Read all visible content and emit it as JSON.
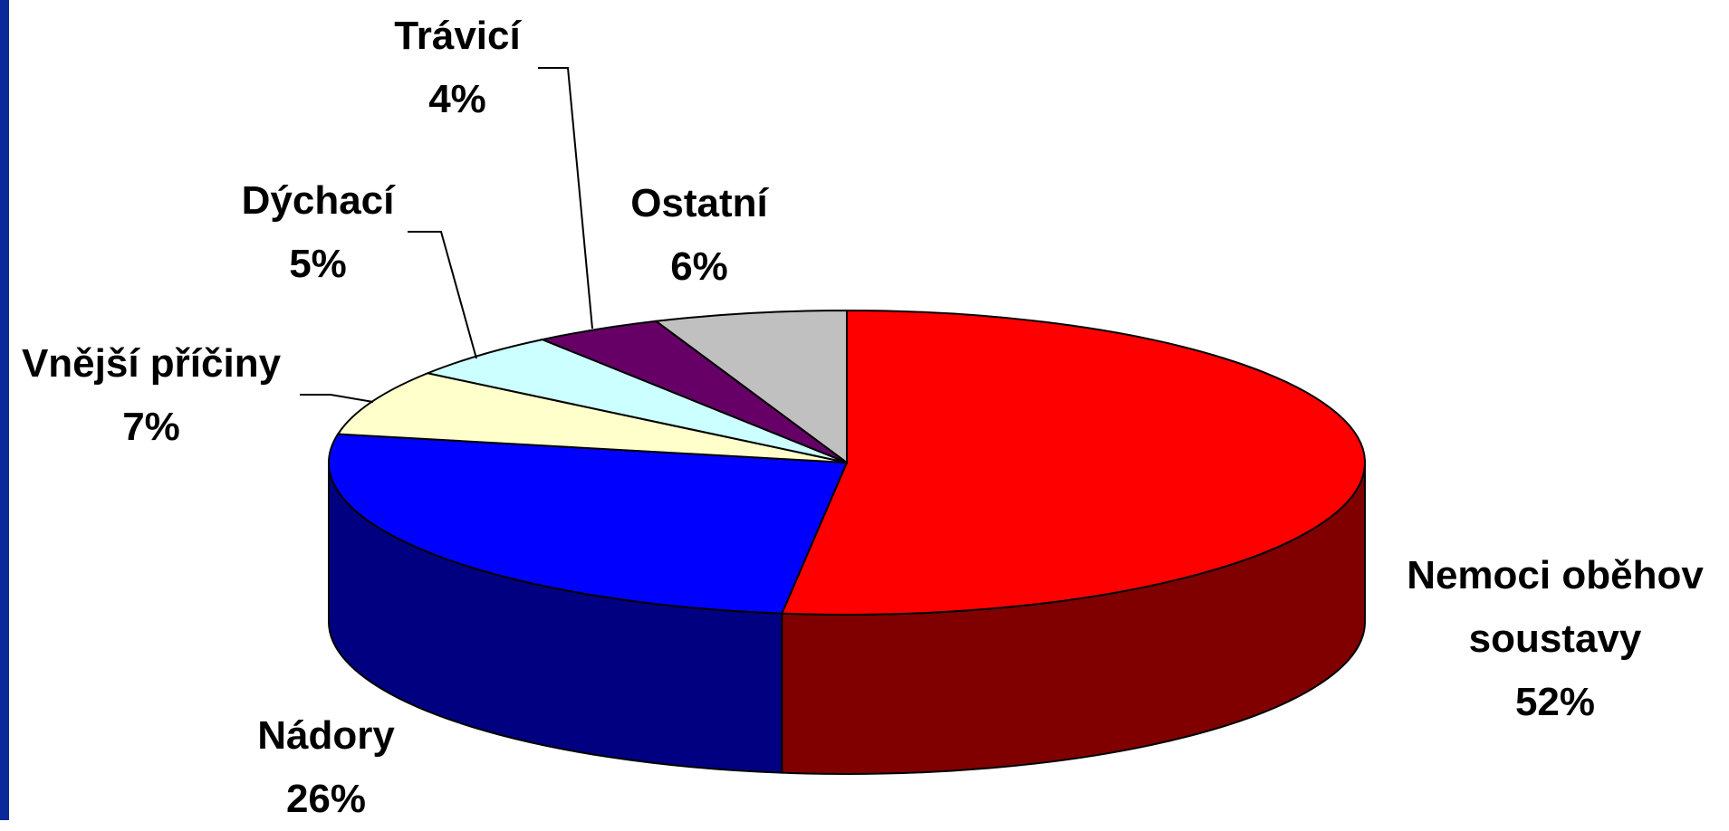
{
  "chart_data": {
    "type": "pie3d",
    "categories": [
      "Nemoci oběhov soustavy",
      "Nádory",
      "Vnější příčiny",
      "Dýchací",
      "Trávicí",
      "Ostatní"
    ],
    "values": [
      52,
      26,
      7,
      5,
      4,
      6
    ],
    "value_labels": [
      "52%",
      "26%",
      "7%",
      "5%",
      "4%",
      "6%"
    ],
    "colors": [
      "#ff0000",
      "#0000ff",
      "#ffffcc",
      "#ccffff",
      "#660066",
      "#c0c0c0"
    ],
    "side_colors": [
      "#800000",
      "#000080",
      "#999977",
      "#88aaaa",
      "#330033",
      "#808080"
    ]
  }
}
